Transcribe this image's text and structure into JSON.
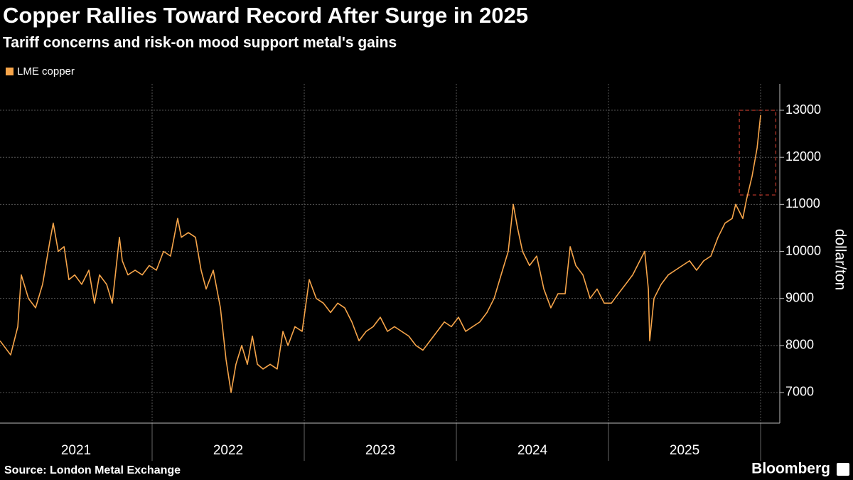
{
  "chart_data": {
    "type": "line",
    "title": "Copper Rallies Toward Record After Surge in 2025",
    "subtitle": "Tariff concerns and risk-on mood support metal's gains",
    "y_label": "dollar/ton",
    "source": "Source: London Metal Exchange",
    "brand": "Bloomberg",
    "legend": "top-left",
    "grid": true,
    "xlim": [
      2021,
      2026.126
    ],
    "ylim": [
      6350,
      13560
    ],
    "yticks": [
      7000,
      8000,
      9000,
      10000,
      11000,
      12000,
      13000
    ],
    "xgrid": [
      2022,
      2023,
      2024,
      2025,
      2026
    ],
    "xticks": [
      {
        "value": 2021.5,
        "label": "2021"
      },
      {
        "value": 2022.5,
        "label": "2022"
      },
      {
        "value": 2023.5,
        "label": "2023"
      },
      {
        "value": 2024.5,
        "label": "2024"
      },
      {
        "value": 2025.5,
        "label": "2025"
      }
    ],
    "highlight": {
      "x": [
        2025.86,
        2026.1
      ],
      "y": [
        11200,
        13000
      ],
      "color": "#c0392b"
    },
    "x": [
      2021,
      2021.07,
      2021.117,
      2021.14,
      2021.187,
      2021.234,
      2021.28,
      2021.327,
      2021.35,
      2021.383,
      2021.421,
      2021.453,
      2021.491,
      2021.537,
      2021.584,
      2021.621,
      2021.654,
      2021.701,
      2021.738,
      2021.785,
      2021.804,
      2021.841,
      2021.888,
      2021.935,
      2021.981,
      2022.028,
      2022.075,
      2022.121,
      2022.168,
      2022.192,
      2022.238,
      2022.285,
      2022.322,
      2022.355,
      2022.402,
      2022.449,
      2022.486,
      2022.519,
      2022.551,
      2022.589,
      2022.626,
      2022.659,
      2022.692,
      2022.729,
      2022.776,
      2022.822,
      2022.86,
      2022.893,
      2022.939,
      2022.986,
      2023.033,
      2023.079,
      2023.126,
      2023.173,
      2023.22,
      2023.266,
      2023.313,
      2023.36,
      2023.407,
      2023.453,
      2023.5,
      2023.547,
      2023.593,
      2023.64,
      2023.687,
      2023.734,
      2023.78,
      2023.827,
      2023.874,
      2023.921,
      2023.967,
      2024.014,
      2024.061,
      2024.107,
      2024.154,
      2024.201,
      2024.248,
      2024.294,
      2024.341,
      2024.374,
      2024.402,
      2024.435,
      2024.481,
      2024.528,
      2024.575,
      2024.621,
      2024.668,
      2024.715,
      2024.748,
      2024.785,
      2024.832,
      2024.879,
      2024.925,
      2024.972,
      2025.019,
      2025.065,
      2025.112,
      2025.159,
      2025.206,
      2025.238,
      2025.262,
      2025.271,
      2025.299,
      2025.346,
      2025.393,
      2025.439,
      2025.486,
      2025.533,
      2025.579,
      2025.626,
      2025.673,
      2025.72,
      2025.766,
      2025.813,
      2025.836,
      2025.883,
      2025.907,
      2025.944,
      2025.977,
      2026.0
    ],
    "series": [
      {
        "name": "LME copper",
        "color": "#f7a54a",
        "values": [
          8100,
          7800,
          8400,
          9500,
          9000,
          8800,
          9300,
          10200,
          10600,
          10000,
          10100,
          9400,
          9500,
          9300,
          9600,
          8900,
          9500,
          9300,
          8900,
          10300,
          9800,
          9500,
          9600,
          9500,
          9700,
          9600,
          10000,
          9900,
          10700,
          10300,
          10400,
          10300,
          9600,
          9200,
          9600,
          8800,
          7700,
          7000,
          7600,
          8000,
          7600,
          8200,
          7600,
          7500,
          7600,
          7500,
          8300,
          8000,
          8400,
          8300,
          9400,
          9000,
          8900,
          8700,
          8900,
          8800,
          8500,
          8100,
          8300,
          8400,
          8600,
          8300,
          8400,
          8300,
          8200,
          8000,
          7900,
          8100,
          8300,
          8500,
          8400,
          8600,
          8300,
          8400,
          8500,
          8700,
          9000,
          9500,
          10000,
          11000,
          10500,
          10000,
          9700,
          9900,
          9200,
          8800,
          9100,
          9100,
          10100,
          9700,
          9500,
          9000,
          9200,
          8900,
          8900,
          9100,
          9300,
          9500,
          9800,
          10000,
          9200,
          8100,
          9000,
          9300,
          9500,
          9600,
          9700,
          9800,
          9600,
          9800,
          9900,
          10300,
          10600,
          10700,
          11000,
          10700,
          11100,
          11600,
          12200,
          12900
        ]
      }
    ]
  }
}
